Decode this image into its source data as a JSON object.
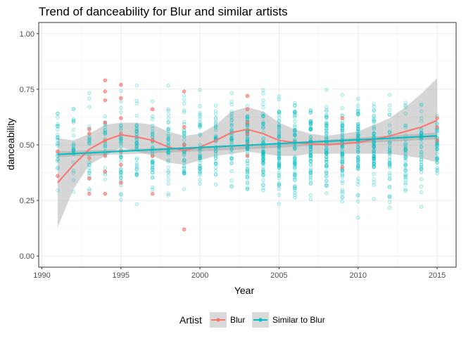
{
  "chart_data": {
    "type": "scatter",
    "title": "Trend of danceability for Blur and similar artists",
    "xlabel": "Year",
    "ylabel": "danceability",
    "xlim": [
      1989.8,
      2016.2
    ],
    "ylim": [
      -0.05,
      1.05
    ],
    "x_ticks": [
      1990,
      1995,
      2000,
      2005,
      2010,
      2015
    ],
    "x_tick_labels": [
      "1990",
      "1995",
      "2000",
      "2005",
      "2010",
      "2015"
    ],
    "y_ticks": [
      0,
      0.25,
      0.5,
      0.75,
      1
    ],
    "y_tick_labels": [
      "0.00",
      "0.25",
      "0.50",
      "0.75",
      "1.00"
    ],
    "grid": true,
    "legend": {
      "title": "Artist",
      "position": "bottom"
    },
    "series": [
      {
        "name": "Blur",
        "color": "#F8766D",
        "points": [
          [
            1991,
            0.36
          ],
          [
            1991,
            0.47
          ],
          [
            1993,
            0.28
          ],
          [
            1993,
            0.35
          ],
          [
            1993,
            0.44
          ],
          [
            1993,
            0.55
          ],
          [
            1993,
            0.57
          ],
          [
            1994,
            0.79
          ],
          [
            1994,
            0.74
          ],
          [
            1994,
            0.7
          ],
          [
            1994,
            0.6
          ],
          [
            1994,
            0.52
          ],
          [
            1994,
            0.45
          ],
          [
            1994,
            0.38
          ],
          [
            1994,
            0.28
          ],
          [
            1995,
            0.77
          ],
          [
            1995,
            0.71
          ],
          [
            1995,
            0.62
          ],
          [
            1995,
            0.55
          ],
          [
            1995,
            0.47
          ],
          [
            1995,
            0.41
          ],
          [
            1995,
            0.33
          ],
          [
            1997,
            0.66
          ],
          [
            1997,
            0.52
          ],
          [
            1997,
            0.45
          ],
          [
            1997,
            0.28
          ],
          [
            1999,
            0.74
          ],
          [
            1999,
            0.58
          ],
          [
            1999,
            0.5
          ],
          [
            1999,
            0.12
          ],
          [
            2003,
            0.72
          ],
          [
            2003,
            0.66
          ],
          [
            2003,
            0.6
          ],
          [
            2003,
            0.55
          ],
          [
            2003,
            0.5
          ],
          [
            2003,
            0.45
          ],
          [
            2009,
            0.62
          ],
          [
            2009,
            0.4
          ],
          [
            2015,
            0.62
          ],
          [
            2015,
            0.58
          ],
          [
            2015,
            0.52
          ]
        ],
        "trend": [
          [
            1991,
            0.33
          ],
          [
            1992,
            0.41
          ],
          [
            1993,
            0.48
          ],
          [
            1994,
            0.52
          ],
          [
            1995,
            0.545
          ],
          [
            1996,
            0.535
          ],
          [
            1997,
            0.52
          ],
          [
            1998,
            0.49
          ],
          [
            1999,
            0.475
          ],
          [
            2000,
            0.49
          ],
          [
            2001,
            0.52
          ],
          [
            2002,
            0.555
          ],
          [
            2003,
            0.57
          ],
          [
            2004,
            0.55
          ],
          [
            2005,
            0.52
          ],
          [
            2006,
            0.51
          ],
          [
            2007,
            0.505
          ],
          [
            2008,
            0.5
          ],
          [
            2009,
            0.505
          ],
          [
            2010,
            0.51
          ],
          [
            2011,
            0.525
          ],
          [
            2012,
            0.54
          ],
          [
            2013,
            0.56
          ],
          [
            2014,
            0.58
          ],
          [
            2015,
            0.61
          ]
        ],
        "band": [
          [
            1991,
            0.13,
            0.53
          ],
          [
            1992,
            0.3,
            0.52
          ],
          [
            1993,
            0.41,
            0.55
          ],
          [
            1994,
            0.45,
            0.59
          ],
          [
            1995,
            0.49,
            0.6
          ],
          [
            1996,
            0.47,
            0.6
          ],
          [
            1997,
            0.45,
            0.59
          ],
          [
            1998,
            0.42,
            0.56
          ],
          [
            1999,
            0.41,
            0.54
          ],
          [
            2000,
            0.43,
            0.55
          ],
          [
            2001,
            0.45,
            0.59
          ],
          [
            2002,
            0.46,
            0.65
          ],
          [
            2003,
            0.47,
            0.67
          ],
          [
            2004,
            0.46,
            0.65
          ],
          [
            2005,
            0.45,
            0.6
          ],
          [
            2006,
            0.45,
            0.57
          ],
          [
            2007,
            0.46,
            0.55
          ],
          [
            2008,
            0.46,
            0.54
          ],
          [
            2009,
            0.46,
            0.55
          ],
          [
            2010,
            0.46,
            0.56
          ],
          [
            2011,
            0.46,
            0.59
          ],
          [
            2012,
            0.46,
            0.62
          ],
          [
            2013,
            0.45,
            0.67
          ],
          [
            2014,
            0.44,
            0.73
          ],
          [
            2015,
            0.42,
            0.8
          ]
        ]
      },
      {
        "name": "Similar to Blur",
        "color": "#00BFC4",
        "trend": [
          [
            1991,
            0.457
          ],
          [
            2015,
            0.54
          ]
        ],
        "band": [
          [
            1991,
            0.445,
            0.47
          ],
          [
            2003,
            0.48,
            0.5
          ],
          [
            2015,
            0.525,
            0.555
          ]
        ]
      }
    ]
  }
}
